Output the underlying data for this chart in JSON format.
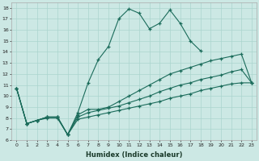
{
  "xlabel": "Humidex (Indice chaleur)",
  "bg_color": "#cce8e4",
  "line_color": "#1a6b5a",
  "grid_color": "#aad4ce",
  "xlim": [
    -0.5,
    23.5
  ],
  "ylim": [
    6,
    18.5
  ],
  "xticks": [
    0,
    1,
    2,
    3,
    4,
    5,
    6,
    7,
    8,
    9,
    10,
    11,
    12,
    13,
    14,
    15,
    16,
    17,
    18,
    19,
    20,
    21,
    22,
    23
  ],
  "yticks": [
    6,
    7,
    8,
    9,
    10,
    11,
    12,
    13,
    14,
    15,
    16,
    17,
    18
  ],
  "line1_x": [
    0,
    1,
    2,
    3,
    4,
    5,
    6,
    7,
    8,
    9,
    10,
    11,
    12,
    13,
    14,
    15,
    16,
    17,
    18
  ],
  "line1_y": [
    10.7,
    7.5,
    7.8,
    8.1,
    8.1,
    6.5,
    8.5,
    11.2,
    13.3,
    14.5,
    17.0,
    17.9,
    17.5,
    16.1,
    16.6,
    17.8,
    16.6,
    15.0,
    14.1
  ],
  "line2_x": [
    0,
    1,
    2,
    3,
    4,
    5,
    6,
    7,
    8,
    9,
    10,
    11,
    12,
    13,
    14,
    15,
    16,
    17,
    18,
    19,
    20,
    21,
    22,
    23
  ],
  "line2_y": [
    10.7,
    7.5,
    7.8,
    8.1,
    8.1,
    6.5,
    8.3,
    8.8,
    8.8,
    9.0,
    9.5,
    10.0,
    10.5,
    11.0,
    11.5,
    12.0,
    12.3,
    12.6,
    12.9,
    13.2,
    13.4,
    13.6,
    13.8,
    11.2
  ],
  "line3_x": [
    0,
    1,
    2,
    3,
    4,
    5,
    6,
    7,
    8,
    9,
    10,
    11,
    12,
    13,
    14,
    15,
    16,
    17,
    18,
    19,
    20,
    21,
    22,
    23
  ],
  "line3_y": [
    10.7,
    7.5,
    7.8,
    8.1,
    8.1,
    6.5,
    8.1,
    8.5,
    8.7,
    8.9,
    9.1,
    9.4,
    9.7,
    10.0,
    10.4,
    10.7,
    11.0,
    11.2,
    11.5,
    11.7,
    11.9,
    12.2,
    12.4,
    11.2
  ],
  "line4_x": [
    0,
    1,
    2,
    3,
    4,
    5,
    6,
    7,
    8,
    9,
    10,
    11,
    12,
    13,
    14,
    15,
    16,
    17,
    18,
    19,
    20,
    21,
    22,
    23
  ],
  "line4_y": [
    10.7,
    7.5,
    7.8,
    8.0,
    8.0,
    6.5,
    7.9,
    8.1,
    8.3,
    8.5,
    8.7,
    8.9,
    9.1,
    9.3,
    9.5,
    9.8,
    10.0,
    10.2,
    10.5,
    10.7,
    10.9,
    11.1,
    11.2,
    11.2
  ]
}
